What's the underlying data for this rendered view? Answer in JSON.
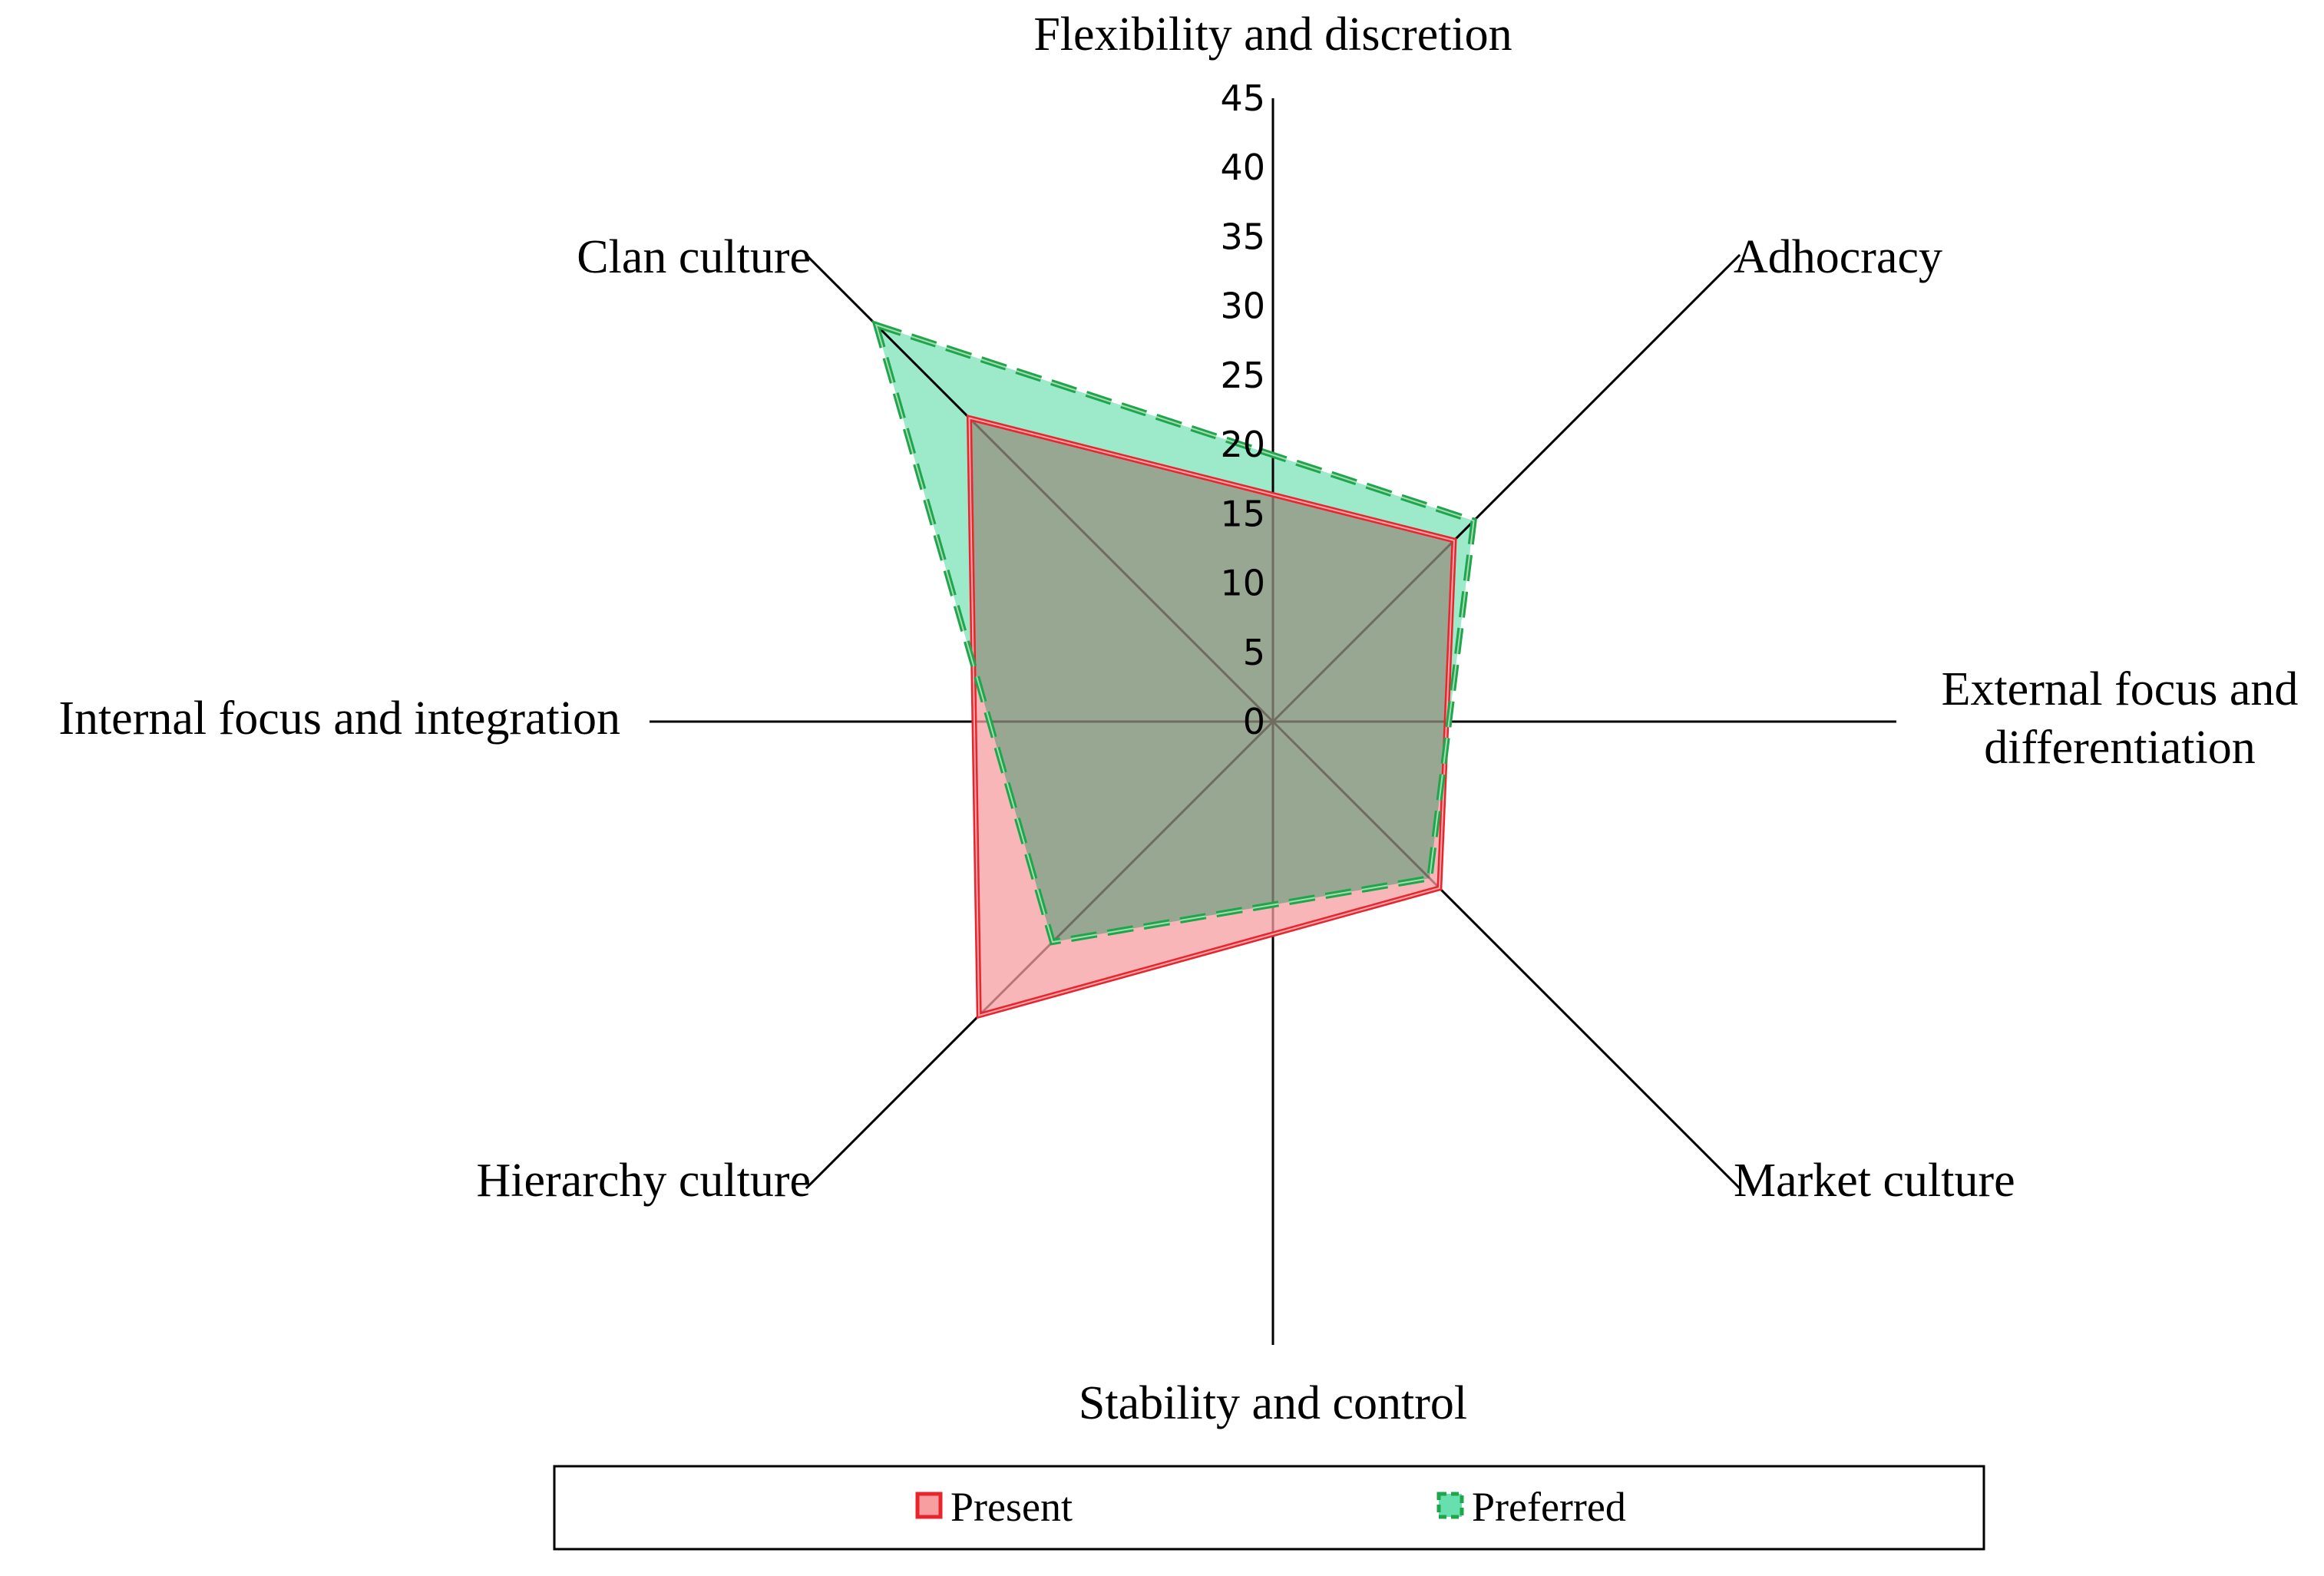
{
  "chart_data": {
    "type": "radar",
    "dimensions": {
      "top": "Flexibility and discretion",
      "bottom": "Stability and control",
      "left": "Internal focus and integration",
      "right_line1": "External focus and",
      "right_line2": "differentiation"
    },
    "categories": [
      "Clan culture",
      "Adhocracy",
      "Market culture",
      "Hierarchy culture"
    ],
    "series": [
      {
        "name": "Present",
        "values": [
          31,
          18.5,
          17,
          30
        ],
        "color": "#e8252d",
        "fill": "#f79ea1"
      },
      {
        "name": "Preferred",
        "values": [
          40.5,
          20.5,
          16,
          22.5
        ],
        "color": "#1fa64a",
        "fill": "#67dfae"
      }
    ],
    "rlim": [
      0,
      45
    ],
    "ticks": [
      "0",
      "5",
      "10",
      "15",
      "20",
      "25",
      "30",
      "35",
      "40",
      "45"
    ],
    "tick_values": [
      0,
      5,
      10,
      15,
      20,
      25,
      30,
      35,
      40,
      45
    ],
    "legend_position": "bottom",
    "grid": false
  }
}
